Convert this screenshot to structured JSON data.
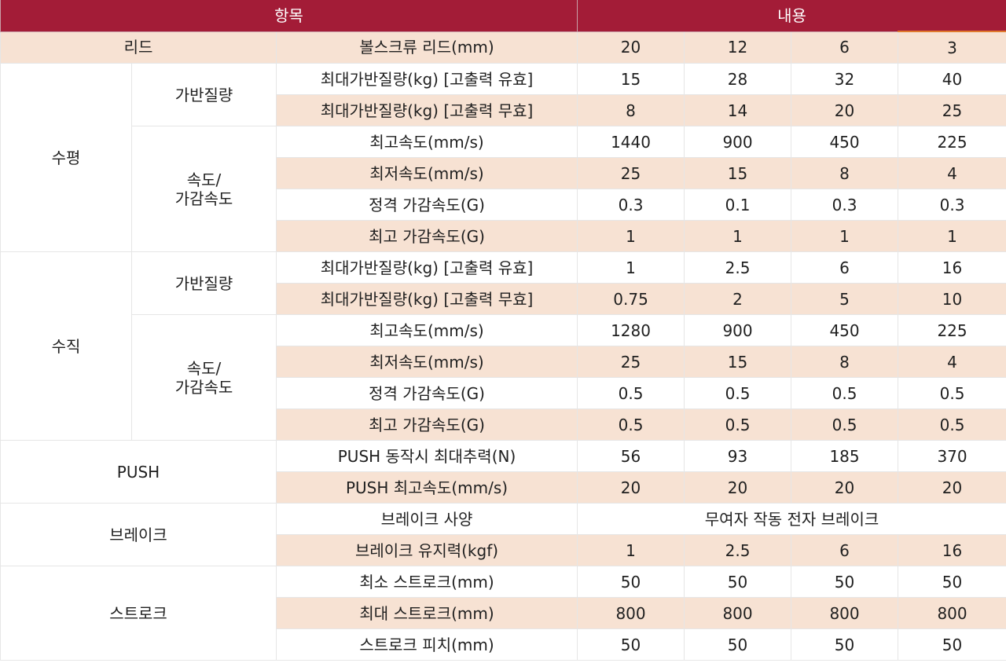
{
  "header": {
    "col_item": "항목",
    "col_content": "내용"
  },
  "lead": {
    "label": "리드",
    "item": "볼스크류 리드(mm)",
    "values": [
      "20",
      "12",
      "6",
      "3"
    ]
  },
  "horizontal": {
    "label": "수평",
    "payload": {
      "label": "가반질량",
      "rows": [
        {
          "item": "최대가반질량(kg) [고출력 유효]",
          "values": [
            "15",
            "28",
            "32",
            "40"
          ]
        },
        {
          "item": "최대가반질량(kg) [고출력 무효]",
          "values": [
            "8",
            "14",
            "20",
            "25"
          ]
        }
      ]
    },
    "speed": {
      "label_line1": "속도/",
      "label_line2": "가감속도",
      "rows": [
        {
          "item": "최고속도(mm/s)",
          "values": [
            "1440",
            "900",
            "450",
            "225"
          ]
        },
        {
          "item": "최저속도(mm/s)",
          "values": [
            "25",
            "15",
            "8",
            "4"
          ]
        },
        {
          "item": "정격 가감속도(G)",
          "values": [
            "0.3",
            "0.1",
            "0.3",
            "0.3"
          ]
        },
        {
          "item": "최고 가감속도(G)",
          "values": [
            "1",
            "1",
            "1",
            "1"
          ]
        }
      ]
    }
  },
  "vertical": {
    "label": "수직",
    "payload": {
      "label": "가반질량",
      "rows": [
        {
          "item": "최대가반질량(kg) [고출력 유효]",
          "values": [
            "1",
            "2.5",
            "6",
            "16"
          ]
        },
        {
          "item": "최대가반질량(kg) [고출력 무효]",
          "values": [
            "0.75",
            "2",
            "5",
            "10"
          ]
        }
      ]
    },
    "speed": {
      "label_line1": "속도/",
      "label_line2": "가감속도",
      "rows": [
        {
          "item": "최고속도(mm/s)",
          "values": [
            "1280",
            "900",
            "450",
            "225"
          ]
        },
        {
          "item": "최저속도(mm/s)",
          "values": [
            "25",
            "15",
            "8",
            "4"
          ]
        },
        {
          "item": "정격 가감속도(G)",
          "values": [
            "0.5",
            "0.5",
            "0.5",
            "0.5"
          ]
        },
        {
          "item": "최고 가감속도(G)",
          "values": [
            "0.5",
            "0.5",
            "0.5",
            "0.5"
          ]
        }
      ]
    }
  },
  "push": {
    "label": "PUSH",
    "rows": [
      {
        "item": "PUSH 동작시 최대추력(N)",
        "values": [
          "56",
          "93",
          "185",
          "370"
        ]
      },
      {
        "item": "PUSH 최고속도(mm/s)",
        "values": [
          "20",
          "20",
          "20",
          "20"
        ]
      }
    ]
  },
  "brake": {
    "label": "브레이크",
    "spec_item": "브레이크 사양",
    "spec_value": "무여자 작동 전자 브레이크",
    "hold": {
      "item": "브레이크 유지력(kgf)",
      "values": [
        "1",
        "2.5",
        "6",
        "16"
      ]
    }
  },
  "stroke": {
    "label": "스트로크",
    "rows": [
      {
        "item": "최소 스트로크(mm)",
        "values": [
          "50",
          "50",
          "50",
          "50"
        ]
      },
      {
        "item": "최대 스트로크(mm)",
        "values": [
          "800",
          "800",
          "800",
          "800"
        ]
      },
      {
        "item": "스트로크 피치(mm)",
        "values": [
          "50",
          "50",
          "50",
          "50"
        ]
      }
    ]
  },
  "colors": {
    "header_bg": "#a31c37",
    "row_tint": "#f7e2d3",
    "accent": "#e07a2e"
  }
}
